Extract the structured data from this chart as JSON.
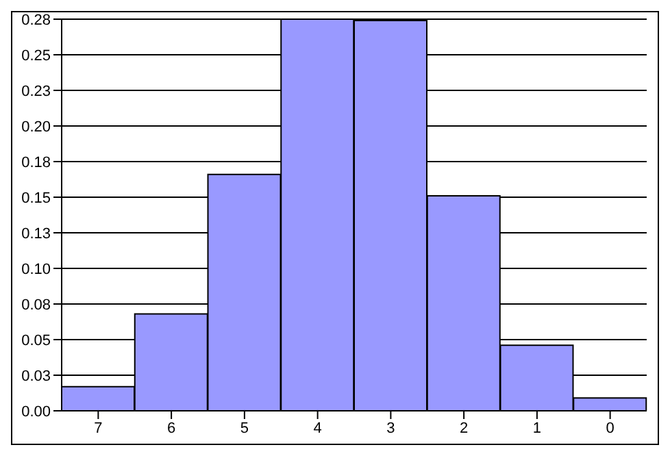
{
  "chart_data": {
    "type": "bar",
    "categories": [
      "7",
      "6",
      "5",
      "4",
      "3",
      "2",
      "1",
      "0"
    ],
    "values": [
      0.017,
      0.068,
      0.166,
      0.275,
      0.274,
      0.151,
      0.046,
      0.009
    ],
    "color": "#9999ff",
    "ylim": [
      0,
      0.275
    ],
    "yticks": [
      {
        "value": 0,
        "label": "0.00"
      },
      {
        "value": 0.025,
        "label": "0.03"
      },
      {
        "value": 0.05,
        "label": "0.05"
      },
      {
        "value": 0.075,
        "label": "0.08"
      },
      {
        "value": 0.1,
        "label": "0.10"
      },
      {
        "value": 0.125,
        "label": "0.13"
      },
      {
        "value": 0.15,
        "label": "0.15"
      },
      {
        "value": 0.175,
        "label": "0.18"
      },
      {
        "value": 0.2,
        "label": "0.20"
      },
      {
        "value": 0.225,
        "label": "0.23"
      },
      {
        "value": 0.25,
        "label": "0.25"
      },
      {
        "value": 0.275,
        "label": "0.28"
      }
    ],
    "grid": "y"
  }
}
